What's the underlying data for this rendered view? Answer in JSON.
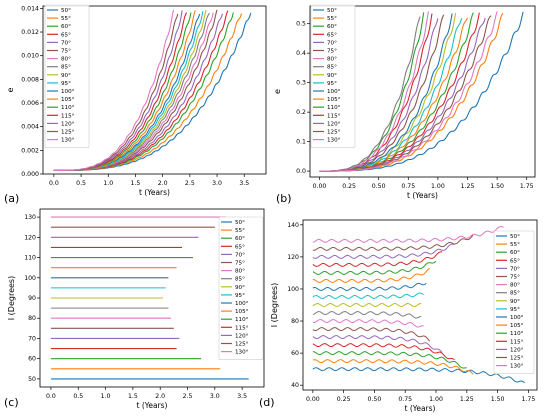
{
  "series_colors": [
    "#1f77b4",
    "#ff7f0e",
    "#2ca02c",
    "#d62728",
    "#9467bd",
    "#8c564b",
    "#e377c2",
    "#7f7f7f",
    "#bcbd22",
    "#17becf",
    "#1f77b4",
    "#ff7f0e",
    "#2ca02c",
    "#d62728",
    "#9467bd",
    "#8c564b",
    "#e377c2"
  ],
  "legend_labels": [
    "50°",
    "55°",
    "60°",
    "65°",
    "70°",
    "75°",
    "80°",
    "85°",
    "90°",
    "95°",
    "100°",
    "105°",
    "110°",
    "115°",
    "120°",
    "125°",
    "130°"
  ],
  "chart_data": [
    {
      "type": "line",
      "panel_label": "(a)",
      "xlabel": "t (Years)",
      "ylabel": "e",
      "xlim": [
        -0.2,
        3.9
      ],
      "ylim": [
        0,
        0.0142
      ],
      "xticks": [
        0.0,
        0.5,
        1.0,
        1.5,
        2.0,
        2.5,
        3.0,
        3.5
      ],
      "xtick_labels": [
        "0.0",
        "0.5",
        "1.0",
        "1.5",
        "2.0",
        "2.5",
        "3.0",
        "3.5"
      ],
      "yticks": [
        0.0,
        0.002,
        0.004,
        0.006,
        0.008,
        0.01,
        0.012,
        0.014
      ],
      "ytick_labels": [
        "0.000",
        "0.002",
        "0.004",
        "0.006",
        "0.008",
        "0.010",
        "0.012",
        "0.014"
      ],
      "legend_position": "top-left",
      "end_times": [
        3.62,
        3.45,
        3.3,
        3.2,
        3.1,
        3.0,
        2.93,
        2.86,
        2.8,
        2.74,
        2.68,
        2.6,
        2.52,
        2.44,
        2.36,
        2.28,
        2.2
      ],
      "e_start": 0.0003,
      "e_end": 0.0137
    },
    {
      "type": "line",
      "panel_label": "(b)",
      "xlabel": "t (Years)",
      "ylabel": "e",
      "xlim": [
        -0.08,
        1.82
      ],
      "ylim": [
        -0.02,
        0.56
      ],
      "xticks": [
        0.0,
        0.25,
        0.5,
        0.75,
        1.0,
        1.25,
        1.5,
        1.75
      ],
      "xtick_labels": [
        "0.00",
        "0.25",
        "0.50",
        "0.75",
        "1.00",
        "1.25",
        "1.50",
        "1.75"
      ],
      "yticks": [
        0.0,
        0.1,
        0.2,
        0.3,
        0.4,
        0.5
      ],
      "ytick_labels": [
        "0.0",
        "0.1",
        "0.2",
        "0.3",
        "0.4",
        "0.5"
      ],
      "legend_position": "top-left",
      "end_times": [
        1.72,
        1.55,
        0.88,
        0.95,
        1.0,
        1.05,
        0.92,
        0.85,
        1.15,
        1.2,
        1.12,
        1.25,
        1.3,
        1.35,
        1.4,
        1.45,
        1.5
      ],
      "e_start": 0.0,
      "e_end": 0.53
    },
    {
      "type": "line",
      "panel_label": "(c)",
      "xlabel": "t (Years)",
      "ylabel": "I (Degrees)",
      "xlim": [
        -0.2,
        3.9
      ],
      "ylim": [
        46,
        134
      ],
      "xticks": [
        0.0,
        0.5,
        1.0,
        1.5,
        2.0,
        2.5,
        3.0,
        3.5
      ],
      "xtick_labels": [
        "0.0",
        "0.5",
        "1.0",
        "1.5",
        "2.0",
        "2.5",
        "3.0",
        "3.5"
      ],
      "yticks": [
        50,
        60,
        70,
        80,
        90,
        100,
        110,
        120,
        130
      ],
      "ytick_labels": [
        "50",
        "60",
        "70",
        "80",
        "90",
        "100",
        "110",
        "120",
        "130"
      ],
      "legend_position": "right",
      "inclinations": [
        50,
        55,
        60,
        65,
        70,
        75,
        80,
        85,
        90,
        95,
        100,
        105,
        110,
        115,
        120,
        125,
        130
      ],
      "end_times": [
        3.62,
        3.1,
        2.75,
        2.3,
        2.35,
        2.25,
        2.2,
        2.15,
        2.05,
        2.1,
        2.15,
        2.3,
        2.6,
        2.4,
        2.7,
        3.0,
        3.2
      ]
    },
    {
      "type": "line",
      "panel_label": "(d)",
      "xlabel": "t (Years)",
      "ylabel": "I (Degrees)",
      "xlim": [
        -0.08,
        1.82
      ],
      "ylim": [
        37,
        143
      ],
      "xticks": [
        0.0,
        0.25,
        0.5,
        0.75,
        1.0,
        1.25,
        1.5,
        1.75
      ],
      "xtick_labels": [
        "0.00",
        "0.25",
        "0.50",
        "0.75",
        "1.00",
        "1.25",
        "1.50",
        "1.75"
      ],
      "yticks": [
        40,
        60,
        80,
        100,
        120,
        140
      ],
      "ytick_labels": [
        "40",
        "60",
        "80",
        "100",
        "120",
        "140"
      ],
      "legend_position": "right",
      "inclinations": [
        50,
        55,
        60,
        65,
        70,
        75,
        80,
        85,
        90,
        95,
        100,
        105,
        110,
        115,
        120,
        125,
        130
      ],
      "end_times": [
        1.72,
        1.3,
        1.25,
        1.15,
        1.05,
        0.95,
        0.9,
        0.88,
        0.88,
        0.9,
        0.92,
        0.95,
        1.0,
        1.05,
        1.15,
        1.3,
        1.55
      ],
      "end_inclinations": [
        41,
        47,
        50,
        55,
        60,
        68,
        76,
        82,
        90,
        97,
        104,
        112,
        118,
        123,
        128,
        133,
        139
      ]
    }
  ]
}
